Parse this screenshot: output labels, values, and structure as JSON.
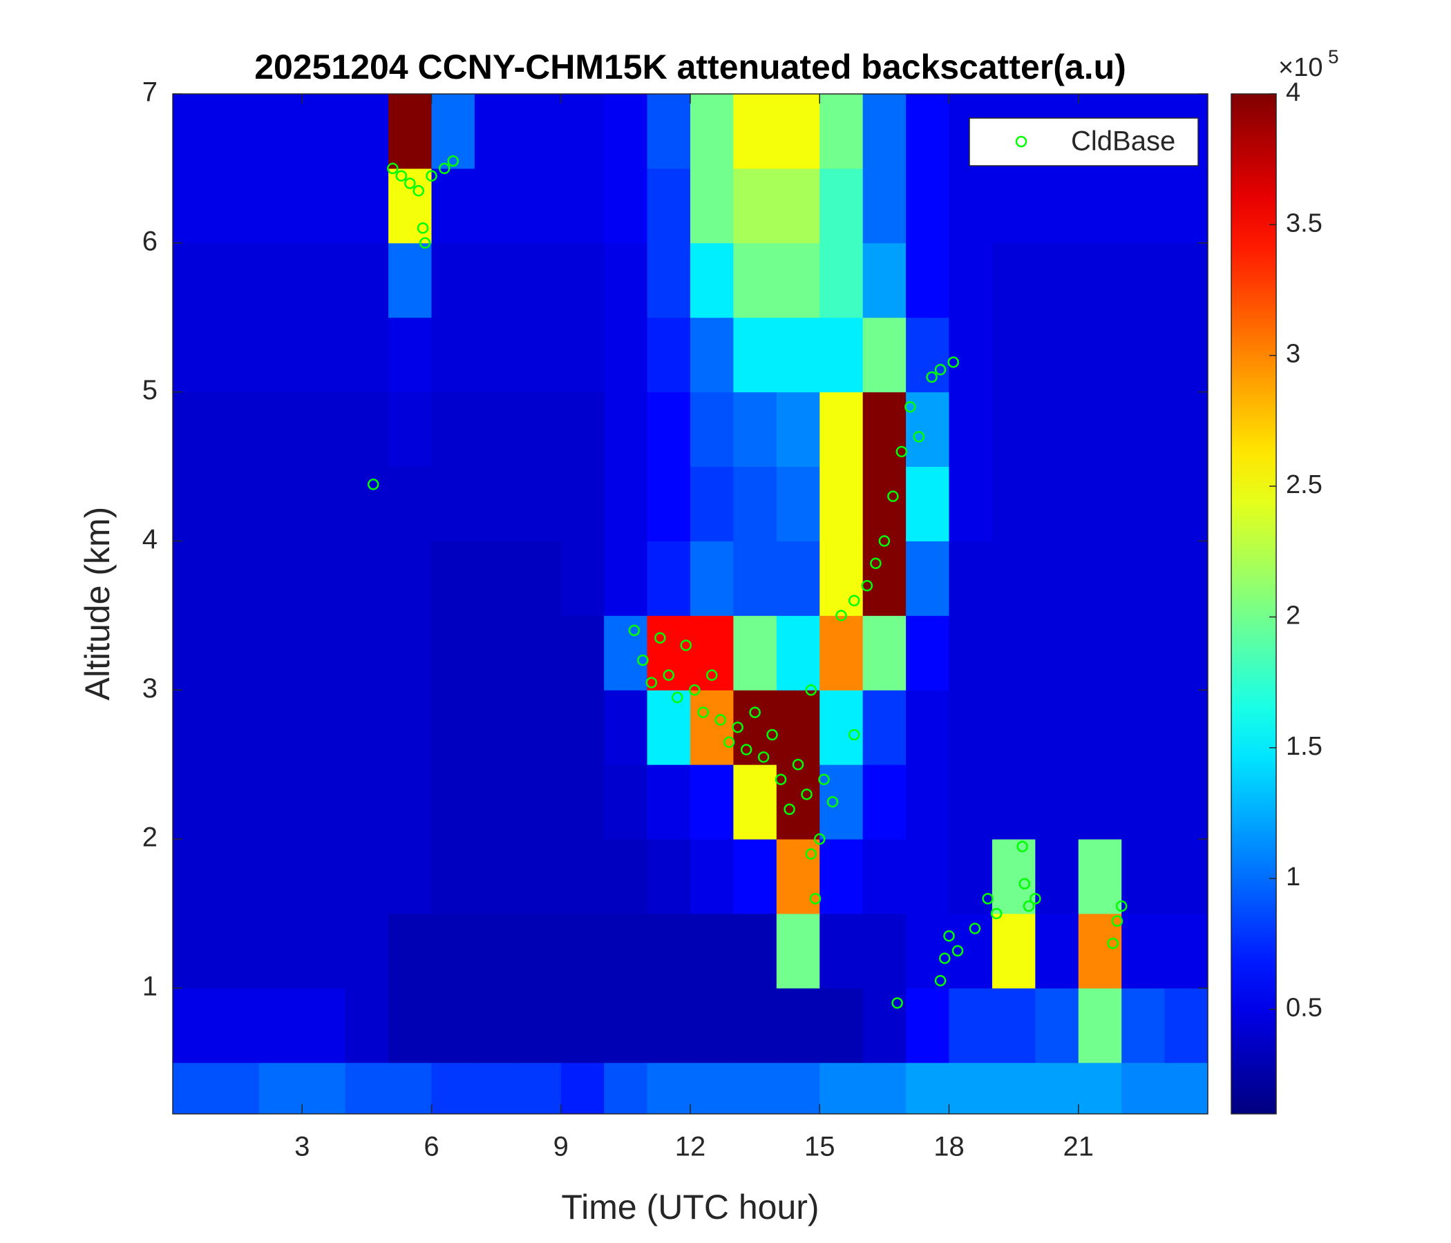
{
  "chart_data": {
    "type": "heatmap",
    "title": "20251204 CCNY-CHM15K attenuated backscatter(a.u)",
    "x_label": "Time (UTC hour)",
    "y_label": "Altitude (km)",
    "xlim": [
      0,
      24
    ],
    "xticks": [
      3,
      6,
      9,
      12,
      15,
      18,
      21
    ],
    "ylim": [
      0.156,
      7
    ],
    "yticks": [
      1,
      2,
      3,
      4,
      5,
      6,
      7
    ],
    "clim": [
      0.1,
      4
    ],
    "cticks": [
      0.5,
      1,
      1.5,
      2,
      2.5,
      3,
      3.5,
      4
    ],
    "colorbar_multiplier": "×10",
    "colorbar_exponent": "5",
    "colormap": "jet",
    "x_edges": [
      0,
      1,
      2,
      3,
      4,
      5,
      6,
      7,
      8,
      9,
      10,
      11,
      12,
      13,
      14,
      15,
      16,
      17,
      18,
      19,
      20,
      21,
      22,
      23,
      24
    ],
    "y_edges": [
      0,
      0.5,
      1,
      1.5,
      2,
      2.5,
      3,
      3.5,
      4,
      4.5,
      5,
      5.5,
      6,
      6.5,
      7
    ],
    "z": [
      [
        0.9,
        0.9,
        1.0,
        1.0,
        0.9,
        0.9,
        0.8,
        0.8,
        0.8,
        0.7,
        0.9,
        1.0,
        1.0,
        1.0,
        1.0,
        1.1,
        1.1,
        1.2,
        1.2,
        1.2,
        1.2,
        1.2,
        1.1,
        1.1
      ],
      [
        0.5,
        0.5,
        0.5,
        0.5,
        0.4,
        0.3,
        0.3,
        0.3,
        0.3,
        0.3,
        0.3,
        0.3,
        0.3,
        0.3,
        0.3,
        0.3,
        0.4,
        0.6,
        0.8,
        0.8,
        0.9,
        2.0,
        0.9,
        0.8
      ],
      [
        0.4,
        0.4,
        0.4,
        0.4,
        0.4,
        0.3,
        0.3,
        0.3,
        0.3,
        0.3,
        0.3,
        0.3,
        0.3,
        0.3,
        2.0,
        0.4,
        0.4,
        0.5,
        0.5,
        2.5,
        0.5,
        3.0,
        0.5,
        0.5
      ],
      [
        0.4,
        0.4,
        0.4,
        0.4,
        0.4,
        0.4,
        0.35,
        0.35,
        0.35,
        0.35,
        0.35,
        0.4,
        0.5,
        0.6,
        3.0,
        0.6,
        0.5,
        0.5,
        0.45,
        2.0,
        0.45,
        2.0,
        0.45,
        0.45
      ],
      [
        0.4,
        0.4,
        0.4,
        0.4,
        0.4,
        0.4,
        0.35,
        0.35,
        0.35,
        0.35,
        0.4,
        0.5,
        0.6,
        2.5,
        4.0,
        1.0,
        0.6,
        0.5,
        0.45,
        0.45,
        0.45,
        0.45,
        0.45,
        0.45
      ],
      [
        0.4,
        0.4,
        0.4,
        0.4,
        0.4,
        0.4,
        0.35,
        0.35,
        0.35,
        0.35,
        0.45,
        1.5,
        3.0,
        4.0,
        4.0,
        1.5,
        0.8,
        0.5,
        0.45,
        0.45,
        0.45,
        0.45,
        0.45,
        0.45
      ],
      [
        0.4,
        0.4,
        0.4,
        0.4,
        0.4,
        0.4,
        0.35,
        0.35,
        0.35,
        0.35,
        1.0,
        3.5,
        3.5,
        2.0,
        1.5,
        3.0,
        2.0,
        0.6,
        0.45,
        0.45,
        0.45,
        0.45,
        0.45,
        0.45
      ],
      [
        0.4,
        0.4,
        0.4,
        0.4,
        0.4,
        0.4,
        0.35,
        0.35,
        0.35,
        0.4,
        0.5,
        0.7,
        1.0,
        0.9,
        0.9,
        2.5,
        4.0,
        1.0,
        0.45,
        0.45,
        0.45,
        0.45,
        0.45,
        0.45
      ],
      [
        0.4,
        0.4,
        0.4,
        0.4,
        0.4,
        0.4,
        0.4,
        0.4,
        0.4,
        0.4,
        0.5,
        0.6,
        0.8,
        0.9,
        1.0,
        2.5,
        4.0,
        1.5,
        0.5,
        0.45,
        0.45,
        0.45,
        0.45,
        0.45
      ],
      [
        0.4,
        0.4,
        0.4,
        0.4,
        0.4,
        0.45,
        0.4,
        0.4,
        0.4,
        0.4,
        0.5,
        0.6,
        0.9,
        1.0,
        1.1,
        2.5,
        4.0,
        1.2,
        0.5,
        0.45,
        0.45,
        0.45,
        0.45,
        0.45
      ],
      [
        0.45,
        0.45,
        0.45,
        0.45,
        0.45,
        0.5,
        0.45,
        0.45,
        0.45,
        0.45,
        0.5,
        0.7,
        1.0,
        1.5,
        1.5,
        1.5,
        2.0,
        0.8,
        0.5,
        0.45,
        0.45,
        0.45,
        0.45,
        0.45
      ],
      [
        0.45,
        0.45,
        0.45,
        0.45,
        0.45,
        1.0,
        0.45,
        0.45,
        0.45,
        0.45,
        0.5,
        0.8,
        1.5,
        2.0,
        2.0,
        1.8,
        1.2,
        0.6,
        0.5,
        0.45,
        0.45,
        0.45,
        0.45,
        0.45
      ],
      [
        0.5,
        0.5,
        0.5,
        0.5,
        0.5,
        2.5,
        0.5,
        0.5,
        0.5,
        0.5,
        0.55,
        0.8,
        2.0,
        2.2,
        2.2,
        1.8,
        1.0,
        0.6,
        0.5,
        0.5,
        0.5,
        0.5,
        0.5,
        0.5
      ],
      [
        0.5,
        0.5,
        0.5,
        0.5,
        0.5,
        4.0,
        1.0,
        0.5,
        0.5,
        0.5,
        0.55,
        0.9,
        2.0,
        2.5,
        2.5,
        2.0,
        1.0,
        0.6,
        0.5,
        0.5,
        0.5,
        0.5,
        0.5,
        0.5
      ]
    ],
    "series": [
      {
        "name": "CldBase",
        "color": "#00ff00",
        "x": [
          4.65,
          5.1,
          5.3,
          5.5,
          5.7,
          5.8,
          5.85,
          6.0,
          6.3,
          6.5,
          10.7,
          10.9,
          11.1,
          11.3,
          11.5,
          11.7,
          11.9,
          12.1,
          12.3,
          12.5,
          12.7,
          12.9,
          13.1,
          13.3,
          13.5,
          13.7,
          13.9,
          14.1,
          14.3,
          14.5,
          14.7,
          14.8,
          14.9,
          15.0,
          15.1,
          15.3,
          14.8,
          15.8,
          15.5,
          15.8,
          16.1,
          16.3,
          16.5,
          16.7,
          16.9,
          17.1,
          17.3,
          17.6,
          17.8,
          18.1,
          16.8,
          17.8,
          17.9,
          18.0,
          18.2,
          18.6,
          18.9,
          19.1,
          19.7,
          19.75,
          19.85,
          20.0,
          21.8,
          21.9,
          22.0
        ],
        "values": [
          4.38,
          6.5,
          6.45,
          6.4,
          6.35,
          6.1,
          6.0,
          6.45,
          6.5,
          6.55,
          3.4,
          3.2,
          3.05,
          3.35,
          3.1,
          2.95,
          3.3,
          3.0,
          2.85,
          3.1,
          2.8,
          2.65,
          2.75,
          2.6,
          2.85,
          2.55,
          2.7,
          2.4,
          2.2,
          2.5,
          2.3,
          1.9,
          1.6,
          2.0,
          2.4,
          2.25,
          3.0,
          2.7,
          3.5,
          3.6,
          3.7,
          3.85,
          4.0,
          4.3,
          4.6,
          4.9,
          4.7,
          5.1,
          5.15,
          5.2,
          0.9,
          1.05,
          1.2,
          1.35,
          1.25,
          1.4,
          1.6,
          1.5,
          1.95,
          1.7,
          1.55,
          1.6,
          1.3,
          1.45,
          1.55
        ]
      }
    ],
    "legend": "northeast"
  }
}
